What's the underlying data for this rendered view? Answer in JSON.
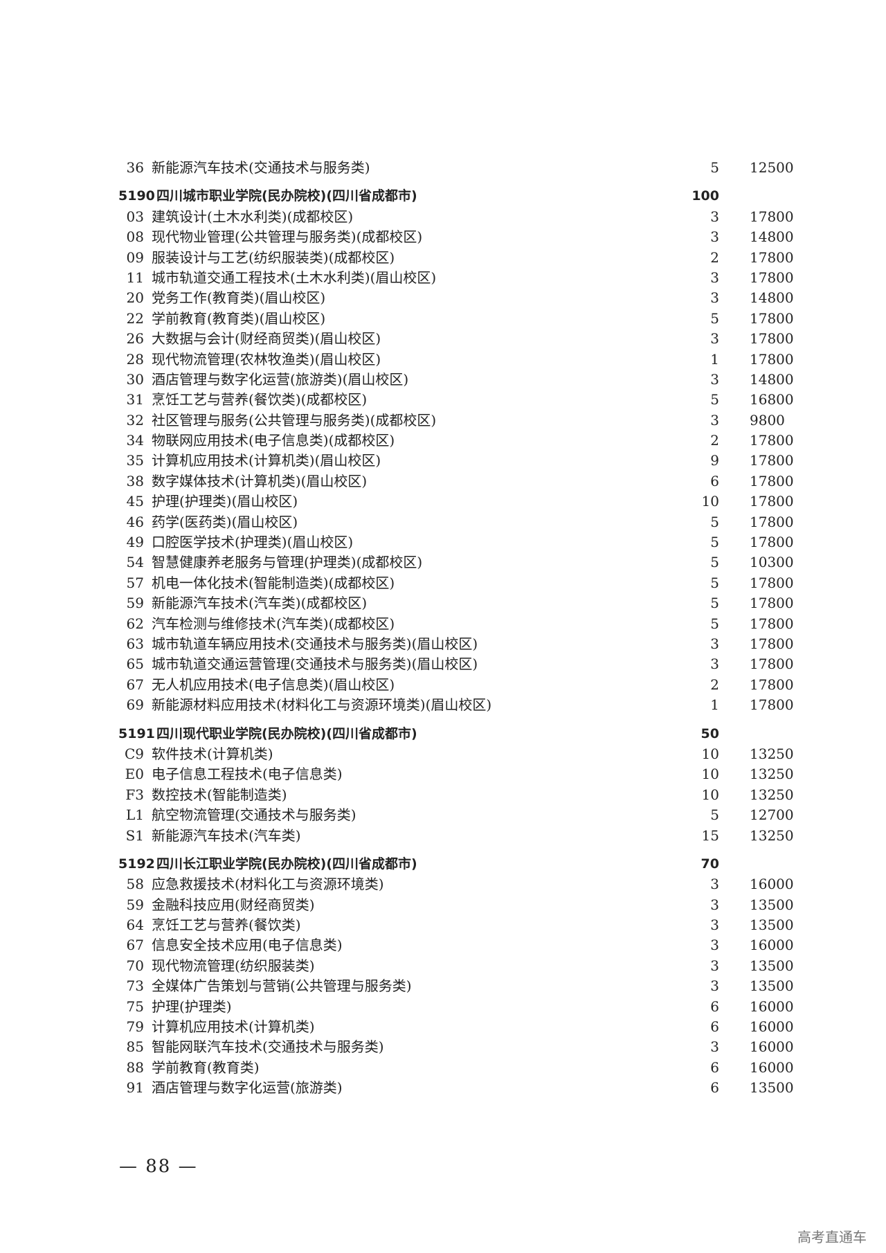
{
  "groups": [
    {
      "header": null,
      "rows": [
        {
          "code": "36",
          "name": "新能源汽车技术(交通技术与服务类)",
          "count": "5",
          "fee": "12500"
        }
      ]
    },
    {
      "header": {
        "code": "5190",
        "name": "四川城市职业学院(民办院校)(四川省成都市)",
        "count": "100"
      },
      "rows": [
        {
          "code": "03",
          "name": "建筑设计(土木水利类)(成都校区)",
          "count": "3",
          "fee": "17800"
        },
        {
          "code": "08",
          "name": "现代物业管理(公共管理与服务类)(成都校区)",
          "count": "3",
          "fee": "14800"
        },
        {
          "code": "09",
          "name": "服装设计与工艺(纺织服装类)(成都校区)",
          "count": "2",
          "fee": "17800"
        },
        {
          "code": "11",
          "name": "城市轨道交通工程技术(土木水利类)(眉山校区)",
          "count": "3",
          "fee": "17800"
        },
        {
          "code": "20",
          "name": "党务工作(教育类)(眉山校区)",
          "count": "3",
          "fee": "14800"
        },
        {
          "code": "22",
          "name": "学前教育(教育类)(眉山校区)",
          "count": "5",
          "fee": "17800"
        },
        {
          "code": "26",
          "name": "大数据与会计(财经商贸类)(眉山校区)",
          "count": "3",
          "fee": "17800"
        },
        {
          "code": "28",
          "name": "现代物流管理(农林牧渔类)(眉山校区)",
          "count": "1",
          "fee": "17800"
        },
        {
          "code": "30",
          "name": "酒店管理与数字化运营(旅游类)(眉山校区)",
          "count": "3",
          "fee": "14800"
        },
        {
          "code": "31",
          "name": "烹饪工艺与营养(餐饮类)(成都校区)",
          "count": "5",
          "fee": "16800"
        },
        {
          "code": "32",
          "name": "社区管理与服务(公共管理与服务类)(成都校区)",
          "count": "3",
          "fee": "9800"
        },
        {
          "code": "34",
          "name": "物联网应用技术(电子信息类)(成都校区)",
          "count": "2",
          "fee": "17800"
        },
        {
          "code": "35",
          "name": "计算机应用技术(计算机类)(眉山校区)",
          "count": "9",
          "fee": "17800"
        },
        {
          "code": "38",
          "name": "数字媒体技术(计算机类)(眉山校区)",
          "count": "6",
          "fee": "17800"
        },
        {
          "code": "45",
          "name": "护理(护理类)(眉山校区)",
          "count": "10",
          "fee": "17800"
        },
        {
          "code": "46",
          "name": "药学(医药类)(眉山校区)",
          "count": "5",
          "fee": "17800"
        },
        {
          "code": "49",
          "name": "口腔医学技术(护理类)(眉山校区)",
          "count": "5",
          "fee": "17800"
        },
        {
          "code": "54",
          "name": "智慧健康养老服务与管理(护理类)(成都校区)",
          "count": "5",
          "fee": "10300"
        },
        {
          "code": "57",
          "name": "机电一体化技术(智能制造类)(成都校区)",
          "count": "5",
          "fee": "17800"
        },
        {
          "code": "59",
          "name": "新能源汽车技术(汽车类)(成都校区)",
          "count": "5",
          "fee": "17800"
        },
        {
          "code": "62",
          "name": "汽车检测与维修技术(汽车类)(成都校区)",
          "count": "5",
          "fee": "17800"
        },
        {
          "code": "63",
          "name": "城市轨道车辆应用技术(交通技术与服务类)(眉山校区)",
          "count": "3",
          "fee": "17800"
        },
        {
          "code": "65",
          "name": "城市轨道交通运营管理(交通技术与服务类)(眉山校区)",
          "count": "3",
          "fee": "17800"
        },
        {
          "code": "67",
          "name": "无人机应用技术(电子信息类)(眉山校区)",
          "count": "2",
          "fee": "17800"
        },
        {
          "code": "69",
          "name": "新能源材料应用技术(材料化工与资源环境类)(眉山校区)",
          "count": "1",
          "fee": "17800"
        }
      ]
    },
    {
      "header": {
        "code": "5191",
        "name": "四川现代职业学院(民办院校)(四川省成都市)",
        "count": "50"
      },
      "rows": [
        {
          "code": "C9",
          "name": "软件技术(计算机类)",
          "count": "10",
          "fee": "13250"
        },
        {
          "code": "E0",
          "name": "电子信息工程技术(电子信息类)",
          "count": "10",
          "fee": "13250"
        },
        {
          "code": "F3",
          "name": "数控技术(智能制造类)",
          "count": "10",
          "fee": "13250"
        },
        {
          "code": "L1",
          "name": "航空物流管理(交通技术与服务类)",
          "count": "5",
          "fee": "12700"
        },
        {
          "code": "S1",
          "name": "新能源汽车技术(汽车类)",
          "count": "15",
          "fee": "13250"
        }
      ]
    },
    {
      "header": {
        "code": "5192",
        "name": "四川长江职业学院(民办院校)(四川省成都市)",
        "count": "70"
      },
      "rows": [
        {
          "code": "58",
          "name": "应急救援技术(材料化工与资源环境类)",
          "count": "3",
          "fee": "16000"
        },
        {
          "code": "59",
          "name": "金融科技应用(财经商贸类)",
          "count": "3",
          "fee": "13500"
        },
        {
          "code": "64",
          "name": "烹饪工艺与营养(餐饮类)",
          "count": "3",
          "fee": "13500"
        },
        {
          "code": "67",
          "name": "信息安全技术应用(电子信息类)",
          "count": "3",
          "fee": "16000"
        },
        {
          "code": "70",
          "name": "现代物流管理(纺织服装类)",
          "count": "3",
          "fee": "13500"
        },
        {
          "code": "73",
          "name": "全媒体广告策划与营销(公共管理与服务类)",
          "count": "3",
          "fee": "13500"
        },
        {
          "code": "75",
          "name": "护理(护理类)",
          "count": "6",
          "fee": "16000"
        },
        {
          "code": "79",
          "name": "计算机应用技术(计算机类)",
          "count": "6",
          "fee": "16000"
        },
        {
          "code": "85",
          "name": "智能网联汽车技术(交通技术与服务类)",
          "count": "3",
          "fee": "16000"
        },
        {
          "code": "88",
          "name": "学前教育(教育类)",
          "count": "6",
          "fee": "16000"
        },
        {
          "code": "91",
          "name": "酒店管理与数字化运营(旅游类)",
          "count": "6",
          "fee": "13500"
        }
      ]
    }
  ],
  "page_number": "— 88 —",
  "watermark": "高考直通车"
}
